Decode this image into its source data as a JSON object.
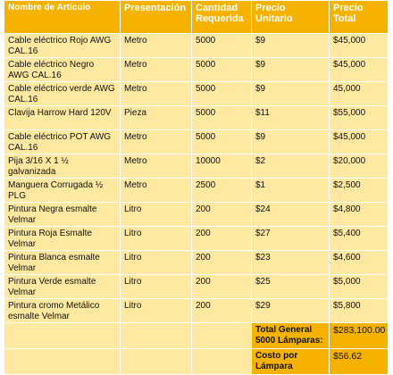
{
  "headers": {
    "articulo": "Nombre de Articulo",
    "presentacion": "Presentación",
    "cantidad": "Cantidad Requerida",
    "precio_unitario": "Precio Unitario",
    "precio_total": "Precio Total"
  },
  "rows": [
    {
      "articulo": "Cable eléctrico Rojo AWG CAL.16",
      "presentacion": "Metro",
      "cantidad": "5000",
      "precio_unitario": "$9",
      "precio_total": "$45,000"
    },
    {
      "articulo": "Cable eléctrico Negro AWG CAL.16",
      "presentacion": "Metro",
      "cantidad": "5000",
      "precio_unitario": "$9",
      "precio_total": "$45,000"
    },
    {
      "articulo": "Cable eléctrico verde AWG CAL.16",
      "presentacion": "Metro",
      "cantidad": "5000",
      "precio_unitario": "$9",
      "precio_total": "45,000"
    },
    {
      "articulo": "Clavija Harrow Hard 120V",
      "presentacion": "Pieza",
      "cantidad": "5000",
      "precio_unitario": "$11",
      "precio_total": "$55,000"
    },
    {
      "articulo": "Cable eléctrico POT AWG CAL.16",
      "presentacion": "Metro",
      "cantidad": "5000",
      "precio_unitario": "$9",
      "precio_total": "$45,000"
    },
    {
      "articulo": "Pija 3/16 X 1 ½ galvanizada",
      "presentacion": "Metro",
      "cantidad": "10000",
      "precio_unitario": "$2",
      "precio_total": "$20,000"
    },
    {
      "articulo": "Manguera Corrugada ½ PLG",
      "presentacion": "Metro",
      "cantidad": "2500",
      "precio_unitario": "$1",
      "precio_total": "$2,500"
    },
    {
      "articulo": "Pintura Negra esmalte Velmar",
      "presentacion": "Litro",
      "cantidad": "200",
      "precio_unitario": "$24",
      "precio_total": "$4,800"
    },
    {
      "articulo": "Pintura Roja Esmalte Velmar",
      "presentacion": "Litro",
      "cantidad": "200",
      "precio_unitario": "$27",
      "precio_total": "$5,400"
    },
    {
      "articulo": "Pintura Blanca esmalte Velmar",
      "presentacion": "Litro",
      "cantidad": "200",
      "precio_unitario": "$23",
      "precio_total": "$4,600"
    },
    {
      "articulo": "Pintura Verde esmalte Velmar",
      "presentacion": "Litro",
      "cantidad": "200",
      "precio_unitario": "$25",
      "precio_total": "$5,000"
    },
    {
      "articulo": "Pintura cromo Metálico esmalte Velmar",
      "presentacion": "Litro",
      "cantidad": "200",
      "precio_unitario": "$29",
      "precio_total": "$5,800"
    }
  ],
  "summary": [
    {
      "label": "Total General 5000 Lámparas:",
      "value": "$283,100.00"
    },
    {
      "label": "Costo por Lámpara",
      "value": "$56.62"
    }
  ],
  "colors": {
    "header_bg": "#f5b300",
    "row_bg": "#ffe8a0",
    "summary_bg": "#f5b300"
  }
}
